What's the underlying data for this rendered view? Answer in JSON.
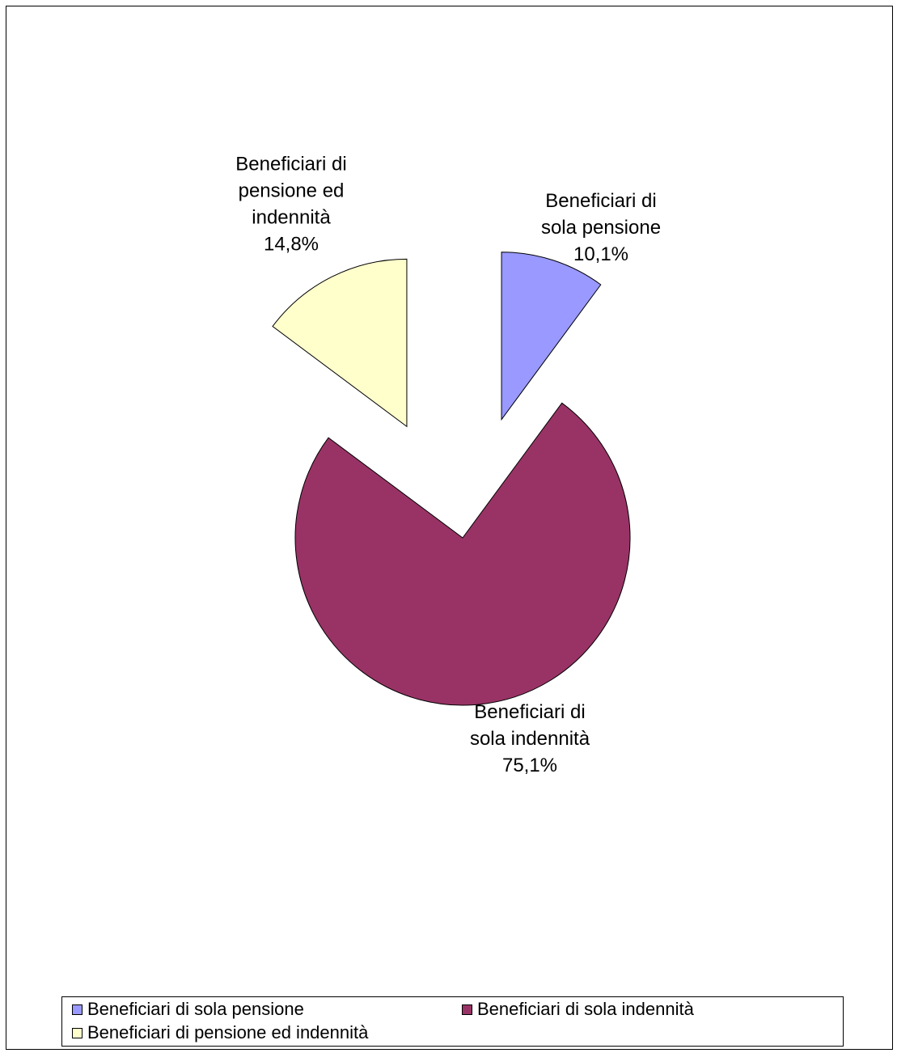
{
  "chart_data": {
    "type": "pie",
    "title": "",
    "slices": [
      {
        "label_lines": [
          "Beneficiari di",
          "sola pensione",
          "10,1%"
        ],
        "legend": "Beneficiari di sola pensione",
        "value": 10.1,
        "color": "#9999ff",
        "exploded": true
      },
      {
        "label_lines": [
          "Beneficiari di",
          "sola indennità",
          "75,1%"
        ],
        "legend": "Beneficiari di sola indennità",
        "value": 75.1,
        "color": "#993366",
        "exploded": false
      },
      {
        "label_lines": [
          "Beneficiari di",
          "pensione ed",
          "indennità",
          "14,8%"
        ],
        "legend": "Beneficiari di pensione ed indennità",
        "value": 14.8,
        "color": "#ffffcc",
        "exploded": true
      }
    ],
    "start_angle": "12 o'clock, clockwise",
    "legend_position": "bottom"
  }
}
